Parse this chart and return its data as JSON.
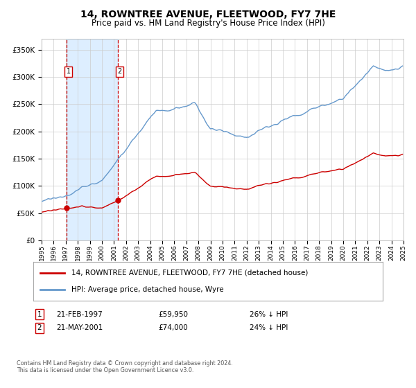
{
  "title": "14, ROWNTREE AVENUE, FLEETWOOD, FY7 7HE",
  "subtitle": "Price paid vs. HM Land Registry's House Price Index (HPI)",
  "sale1_date": "21-FEB-1997",
  "sale1_price": 59950,
  "sale2_date": "21-MAY-2001",
  "sale2_price": 74000,
  "legend_property": "14, ROWNTREE AVENUE, FLEETWOOD, FY7 7HE (detached house)",
  "legend_hpi": "HPI: Average price, detached house, Wyre",
  "footer": "Contains HM Land Registry data © Crown copyright and database right 2024.\nThis data is licensed under the Open Government Licence v3.0.",
  "property_color": "#cc0000",
  "hpi_color": "#6699cc",
  "shade_color": "#ddeeff",
  "dashed_color": "#cc0000",
  "grid_color": "#cccccc",
  "background_color": "#ffffff",
  "ylim": [
    0,
    370000
  ],
  "yticks": [
    0,
    50000,
    100000,
    150000,
    200000,
    250000,
    300000,
    350000
  ],
  "sale1_year": 1997,
  "sale1_month": 2,
  "sale2_year": 2001,
  "sale2_month": 5
}
